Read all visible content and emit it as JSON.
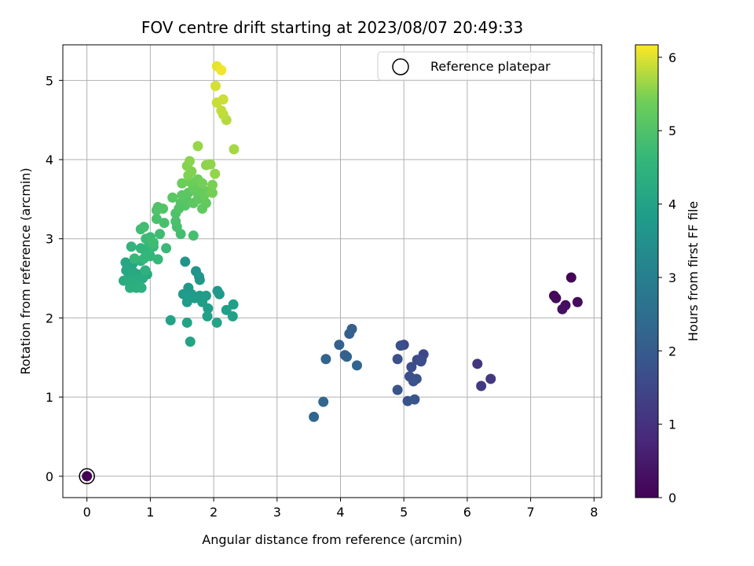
{
  "chart_data": {
    "type": "scatter",
    "title": "FOV centre drift starting at 2023/08/07 20:49:33",
    "xlabel": "Angular distance from reference (arcmin)",
    "ylabel": "Rotation from reference (arcmin)",
    "xlim": [
      -0.38,
      8.12
    ],
    "ylim": [
      -0.27,
      5.45
    ],
    "xticks": [
      "0",
      "1",
      "2",
      "3",
      "4",
      "5",
      "6",
      "7",
      "8"
    ],
    "yticks": [
      "0",
      "1",
      "2",
      "3",
      "4",
      "5"
    ],
    "grid": true,
    "legend": {
      "placement": "top-right",
      "label": "Reference platepar"
    },
    "reference_point": {
      "x": 0,
      "y": 0,
      "color_value": 0
    },
    "colorbar": {
      "label": "Hours from first FF file",
      "colormap": "viridis",
      "range": [
        0,
        6.17
      ],
      "ticks": [
        "0",
        "1",
        "2",
        "3",
        "4",
        "5",
        "6"
      ]
    },
    "points": [
      {
        "x": 7.64,
        "y": 2.51,
        "c": 0.05
      },
      {
        "x": 7.37,
        "y": 2.28,
        "c": 0.1
      },
      {
        "x": 7.4,
        "y": 2.25,
        "c": 0.15
      },
      {
        "x": 7.74,
        "y": 2.2,
        "c": 0.2
      },
      {
        "x": 7.55,
        "y": 2.16,
        "c": 0.25
      },
      {
        "x": 7.5,
        "y": 2.11,
        "c": 0.3
      },
      {
        "x": 6.16,
        "y": 1.42,
        "c": 1.1
      },
      {
        "x": 6.37,
        "y": 1.23,
        "c": 1.15
      },
      {
        "x": 6.22,
        "y": 1.14,
        "c": 1.2
      },
      {
        "x": 5.0,
        "y": 1.66,
        "c": 1.45
      },
      {
        "x": 5.31,
        "y": 1.54,
        "c": 1.5
      },
      {
        "x": 5.28,
        "y": 1.47,
        "c": 1.55
      },
      {
        "x": 5.21,
        "y": 1.47,
        "c": 1.6
      },
      {
        "x": 5.27,
        "y": 1.45,
        "c": 1.62
      },
      {
        "x": 5.12,
        "y": 1.38,
        "c": 1.65
      },
      {
        "x": 4.9,
        "y": 1.48,
        "c": 1.68
      },
      {
        "x": 4.95,
        "y": 1.65,
        "c": 1.7
      },
      {
        "x": 5.09,
        "y": 1.26,
        "c": 1.72
      },
      {
        "x": 5.2,
        "y": 1.23,
        "c": 1.75
      },
      {
        "x": 5.15,
        "y": 1.2,
        "c": 1.78
      },
      {
        "x": 4.9,
        "y": 1.09,
        "c": 1.8
      },
      {
        "x": 5.06,
        "y": 0.95,
        "c": 1.82
      },
      {
        "x": 5.17,
        "y": 0.97,
        "c": 1.85
      },
      {
        "x": 4.18,
        "y": 1.86,
        "c": 2.1
      },
      {
        "x": 4.14,
        "y": 1.8,
        "c": 2.12
      },
      {
        "x": 3.98,
        "y": 1.66,
        "c": 2.15
      },
      {
        "x": 4.07,
        "y": 1.53,
        "c": 2.18
      },
      {
        "x": 4.1,
        "y": 1.51,
        "c": 2.2
      },
      {
        "x": 3.77,
        "y": 1.48,
        "c": 2.22
      },
      {
        "x": 4.26,
        "y": 1.4,
        "c": 2.25
      },
      {
        "x": 3.73,
        "y": 0.94,
        "c": 2.28
      },
      {
        "x": 3.58,
        "y": 0.75,
        "c": 2.3
      },
      {
        "x": 1.55,
        "y": 2.71,
        "c": 3.6
      },
      {
        "x": 1.72,
        "y": 2.59,
        "c": 3.62
      },
      {
        "x": 1.77,
        "y": 2.52,
        "c": 3.64
      },
      {
        "x": 1.78,
        "y": 2.48,
        "c": 3.66
      },
      {
        "x": 1.6,
        "y": 2.38,
        "c": 3.68
      },
      {
        "x": 2.06,
        "y": 2.34,
        "c": 3.7
      },
      {
        "x": 2.09,
        "y": 2.3,
        "c": 3.72
      },
      {
        "x": 1.52,
        "y": 2.3,
        "c": 3.74
      },
      {
        "x": 1.65,
        "y": 2.3,
        "c": 3.76
      },
      {
        "x": 1.78,
        "y": 2.28,
        "c": 3.78
      },
      {
        "x": 1.88,
        "y": 2.28,
        "c": 3.8
      },
      {
        "x": 1.7,
        "y": 2.25,
        "c": 3.82
      },
      {
        "x": 1.58,
        "y": 2.2,
        "c": 3.84
      },
      {
        "x": 1.82,
        "y": 2.2,
        "c": 3.86
      },
      {
        "x": 2.31,
        "y": 2.17,
        "c": 3.88
      },
      {
        "x": 1.91,
        "y": 2.12,
        "c": 3.9
      },
      {
        "x": 2.2,
        "y": 2.1,
        "c": 3.92
      },
      {
        "x": 1.9,
        "y": 2.02,
        "c": 3.94
      },
      {
        "x": 2.3,
        "y": 2.02,
        "c": 3.96
      },
      {
        "x": 1.32,
        "y": 1.97,
        "c": 3.98
      },
      {
        "x": 1.58,
        "y": 1.94,
        "c": 4.0
      },
      {
        "x": 2.05,
        "y": 1.94,
        "c": 4.02
      },
      {
        "x": 1.63,
        "y": 1.7,
        "c": 4.04
      },
      {
        "x": 0.61,
        "y": 2.7,
        "c": 4.1
      },
      {
        "x": 0.72,
        "y": 2.68,
        "c": 4.12
      },
      {
        "x": 0.62,
        "y": 2.6,
        "c": 4.14
      },
      {
        "x": 0.75,
        "y": 2.57,
        "c": 4.16
      },
      {
        "x": 0.85,
        "y": 2.55,
        "c": 4.18
      },
      {
        "x": 0.95,
        "y": 2.55,
        "c": 4.2
      },
      {
        "x": 0.65,
        "y": 2.5,
        "c": 4.22
      },
      {
        "x": 0.75,
        "y": 2.5,
        "c": 4.24
      },
      {
        "x": 0.88,
        "y": 2.5,
        "c": 4.26
      },
      {
        "x": 0.58,
        "y": 2.47,
        "c": 4.28
      },
      {
        "x": 0.7,
        "y": 2.45,
        "c": 4.3
      },
      {
        "x": 0.8,
        "y": 2.42,
        "c": 4.32
      },
      {
        "x": 0.68,
        "y": 2.38,
        "c": 4.34
      },
      {
        "x": 0.78,
        "y": 2.38,
        "c": 4.36
      },
      {
        "x": 0.86,
        "y": 2.38,
        "c": 4.38
      },
      {
        "x": 0.92,
        "y": 2.6,
        "c": 4.4
      },
      {
        "x": 0.85,
        "y": 2.72,
        "c": 4.42
      },
      {
        "x": 0.7,
        "y": 2.9,
        "c": 4.5
      },
      {
        "x": 0.85,
        "y": 2.88,
        "c": 4.52
      },
      {
        "x": 0.92,
        "y": 2.85,
        "c": 4.54
      },
      {
        "x": 0.98,
        "y": 2.82,
        "c": 4.56
      },
      {
        "x": 1.0,
        "y": 2.78,
        "c": 4.58
      },
      {
        "x": 0.9,
        "y": 2.75,
        "c": 4.6
      },
      {
        "x": 1.12,
        "y": 2.74,
        "c": 4.62
      },
      {
        "x": 0.75,
        "y": 2.75,
        "c": 4.64
      },
      {
        "x": 0.98,
        "y": 2.95,
        "c": 4.66
      },
      {
        "x": 1.05,
        "y": 2.9,
        "c": 4.68
      },
      {
        "x": 1.25,
        "y": 2.88,
        "c": 4.7
      },
      {
        "x": 0.93,
        "y": 3.0,
        "c": 4.72
      },
      {
        "x": 1.0,
        "y": 3.02,
        "c": 4.74
      },
      {
        "x": 1.05,
        "y": 2.95,
        "c": 4.76
      },
      {
        "x": 1.15,
        "y": 3.06,
        "c": 4.78
      },
      {
        "x": 0.85,
        "y": 3.12,
        "c": 4.8
      },
      {
        "x": 0.9,
        "y": 3.15,
        "c": 4.82
      },
      {
        "x": 1.48,
        "y": 3.06,
        "c": 4.84
      },
      {
        "x": 1.68,
        "y": 3.04,
        "c": 4.86
      },
      {
        "x": 1.42,
        "y": 3.15,
        "c": 4.88
      },
      {
        "x": 1.22,
        "y": 3.2,
        "c": 4.9
      },
      {
        "x": 1.1,
        "y": 3.25,
        "c": 4.92
      },
      {
        "x": 1.4,
        "y": 3.22,
        "c": 4.94
      },
      {
        "x": 1.4,
        "y": 3.32,
        "c": 4.96
      },
      {
        "x": 1.1,
        "y": 3.36,
        "c": 4.98
      },
      {
        "x": 1.12,
        "y": 3.4,
        "c": 5.0
      },
      {
        "x": 1.2,
        "y": 3.38,
        "c": 5.02
      },
      {
        "x": 1.45,
        "y": 3.38,
        "c": 5.04
      },
      {
        "x": 1.55,
        "y": 3.42,
        "c": 5.06
      },
      {
        "x": 1.48,
        "y": 3.45,
        "c": 5.08
      },
      {
        "x": 1.58,
        "y": 3.48,
        "c": 5.1
      },
      {
        "x": 1.35,
        "y": 3.52,
        "c": 5.12
      },
      {
        "x": 1.5,
        "y": 3.55,
        "c": 5.14
      },
      {
        "x": 1.6,
        "y": 3.58,
        "c": 5.16
      },
      {
        "x": 1.68,
        "y": 3.45,
        "c": 5.18
      },
      {
        "x": 1.75,
        "y": 3.5,
        "c": 5.2
      },
      {
        "x": 1.82,
        "y": 3.38,
        "c": 5.22
      },
      {
        "x": 1.88,
        "y": 3.45,
        "c": 5.24
      },
      {
        "x": 1.72,
        "y": 3.6,
        "c": 5.26
      },
      {
        "x": 1.78,
        "y": 3.62,
        "c": 5.28
      },
      {
        "x": 1.68,
        "y": 3.65,
        "c": 5.3
      },
      {
        "x": 1.85,
        "y": 3.55,
        "c": 5.32
      },
      {
        "x": 1.92,
        "y": 3.6,
        "c": 5.34
      },
      {
        "x": 1.5,
        "y": 3.7,
        "c": 5.36
      },
      {
        "x": 1.62,
        "y": 3.72,
        "c": 5.38
      },
      {
        "x": 1.75,
        "y": 3.75,
        "c": 5.4
      },
      {
        "x": 1.82,
        "y": 3.7,
        "c": 5.42
      },
      {
        "x": 1.98,
        "y": 3.58,
        "c": 5.44
      },
      {
        "x": 1.98,
        "y": 3.68,
        "c": 5.46
      },
      {
        "x": 1.6,
        "y": 3.8,
        "c": 5.48
      },
      {
        "x": 1.65,
        "y": 3.85,
        "c": 5.5
      },
      {
        "x": 1.58,
        "y": 3.92,
        "c": 5.52
      },
      {
        "x": 1.62,
        "y": 3.98,
        "c": 5.54
      },
      {
        "x": 1.88,
        "y": 3.93,
        "c": 5.56
      },
      {
        "x": 1.95,
        "y": 3.94,
        "c": 5.58
      },
      {
        "x": 2.02,
        "y": 3.82,
        "c": 5.6
      },
      {
        "x": 1.75,
        "y": 4.17,
        "c": 5.62
      },
      {
        "x": 2.32,
        "y": 4.13,
        "c": 5.7
      },
      {
        "x": 2.2,
        "y": 4.5,
        "c": 5.78
      },
      {
        "x": 2.15,
        "y": 4.57,
        "c": 5.82
      },
      {
        "x": 2.12,
        "y": 4.62,
        "c": 5.85
      },
      {
        "x": 2.05,
        "y": 4.72,
        "c": 5.88
      },
      {
        "x": 2.15,
        "y": 4.76,
        "c": 5.9
      },
      {
        "x": 2.03,
        "y": 4.93,
        "c": 5.95
      },
      {
        "x": 2.05,
        "y": 5.18,
        "c": 6.05
      },
      {
        "x": 2.12,
        "y": 5.13,
        "c": 6.1
      }
    ]
  }
}
